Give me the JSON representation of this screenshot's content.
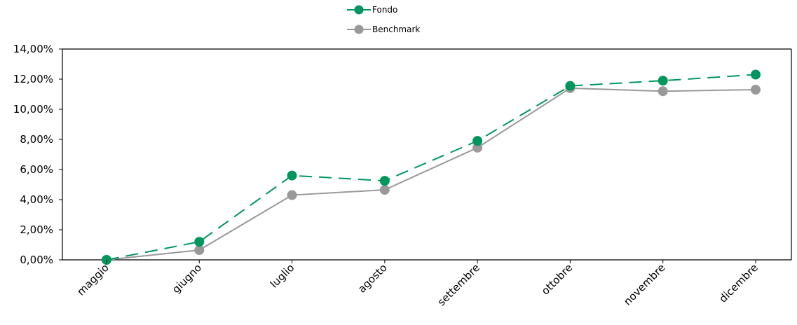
{
  "chart_data": {
    "type": "line",
    "categories": [
      "maggio",
      "giugno",
      "luglio",
      "agosto",
      "settembre",
      "ottobre",
      "novembre",
      "dicembre"
    ],
    "series": [
      {
        "name": "Fondo",
        "values": [
          0.0,
          1.2,
          5.6,
          5.25,
          7.9,
          11.55,
          11.9,
          12.3
        ],
        "color": "#00965e",
        "dash": "dashed"
      },
      {
        "name": "Benchmark",
        "values": [
          0.0,
          0.65,
          4.3,
          4.65,
          7.45,
          11.4,
          11.2,
          11.3
        ],
        "color": "#999999",
        "dash": "solid"
      }
    ],
    "ylim": [
      0,
      14
    ],
    "yticks": [
      "0,00%",
      "2,00%",
      "4,00%",
      "6,00%",
      "8,00%",
      "10,00%",
      "12,00%",
      "14,00%"
    ],
    "legend_position": "top-center",
    "grid": false
  }
}
